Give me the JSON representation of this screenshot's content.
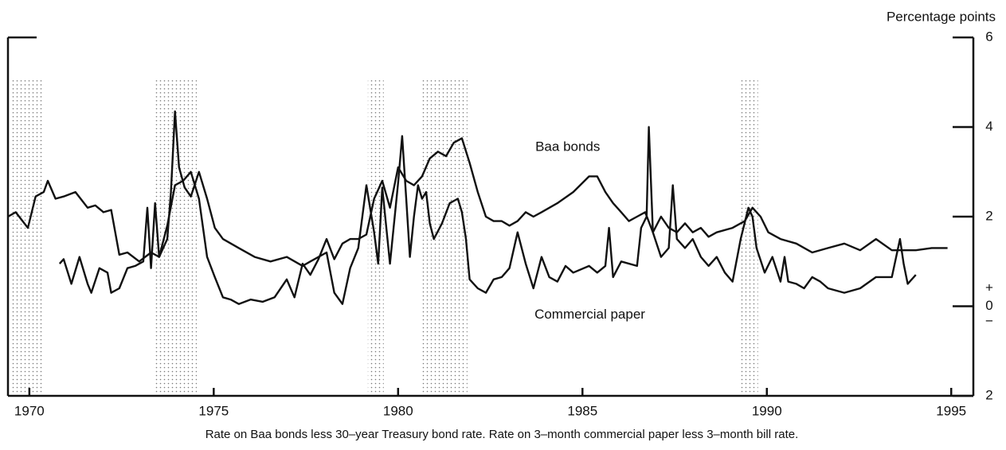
{
  "chart_data": {
    "type": "line",
    "y_axis_label": "Percentage points",
    "caption": "Rate on Baa bonds less 30–year Treasury bond rate. Rate on 3–month commercial paper less 3–month bill rate.",
    "annotations": [
      {
        "text": "Baa bonds",
        "x": 1984.6,
        "y": 3.55
      },
      {
        "text": "Commercial paper",
        "x": 1985.2,
        "y": -0.2
      }
    ],
    "sign_marks": [
      {
        "text": "+",
        "y": 0.4
      },
      {
        "text": "−",
        "y": -0.35
      }
    ],
    "shaded": [
      [
        1969.5,
        1970.4
      ],
      [
        1973.37,
        1974.54
      ],
      [
        1979.18,
        1979.61
      ],
      [
        1980.65,
        1981.88
      ],
      [
        1989.29,
        1989.76
      ]
    ],
    "xlim": [
      1969.42,
      1995.6
    ],
    "xticks": [
      1970,
      1975,
      1980,
      1985,
      1990,
      1995
    ],
    "ylim": [
      -2,
      6
    ],
    "yticks": [
      6,
      4,
      2,
      0,
      {
        "value": -2,
        "label": "2"
      }
    ],
    "series": [
      {
        "name": "Baa bonds",
        "color": "#111111",
        "x": [
          1969.42,
          1969.63,
          1969.96,
          1970.17,
          1970.39,
          1970.5,
          1970.71,
          1970.93,
          1971.25,
          1971.58,
          1971.79,
          1972.01,
          1972.22,
          1972.44,
          1972.66,
          1972.98,
          1973.3,
          1973.52,
          1973.74,
          1973.95,
          1974.17,
          1974.38,
          1974.6,
          1974.82,
          1975.03,
          1975.25,
          1975.46,
          1975.68,
          1976.0,
          1976.33,
          1976.65,
          1976.98,
          1977.19,
          1977.41,
          1977.62,
          1977.84,
          1978.06,
          1978.27,
          1978.49,
          1978.7,
          1978.92,
          1979.14,
          1979.35,
          1979.57,
          1979.78,
          1980.0,
          1980.22,
          1980.43,
          1980.65,
          1980.86,
          1981.08,
          1981.3,
          1981.51,
          1981.73,
          1981.94,
          1982.16,
          1982.38,
          1982.59,
          1982.81,
          1983.02,
          1983.24,
          1983.46,
          1983.67,
          1983.89,
          1984.32,
          1984.75,
          1985.18,
          1985.4,
          1985.62,
          1985.83,
          1986.05,
          1986.26,
          1986.48,
          1986.7,
          1986.91,
          1987.13,
          1987.34,
          1987.56,
          1987.78,
          1987.99,
          1988.21,
          1988.42,
          1988.64,
          1989.07,
          1989.4,
          1989.61,
          1989.83,
          1990.04,
          1990.37,
          1990.8,
          1991.23,
          1991.66,
          1992.1,
          1992.53,
          1992.96,
          1993.39,
          1994.04,
          1994.47,
          1994.9
        ],
        "values": [
          2.0,
          2.1,
          1.75,
          2.45,
          2.55,
          2.8,
          2.4,
          2.45,
          2.55,
          2.2,
          2.25,
          2.1,
          2.15,
          1.15,
          1.2,
          1.0,
          1.2,
          1.1,
          1.8,
          2.7,
          2.8,
          3.0,
          2.4,
          1.1,
          0.65,
          0.2,
          0.15,
          0.05,
          0.15,
          0.1,
          0.2,
          0.6,
          0.2,
          0.95,
          0.7,
          1.05,
          1.5,
          1.05,
          1.4,
          1.5,
          1.5,
          1.6,
          2.4,
          2.8,
          2.2,
          3.1,
          2.8,
          2.7,
          2.9,
          3.3,
          3.45,
          3.35,
          3.65,
          3.75,
          3.2,
          2.55,
          2.0,
          1.9,
          1.9,
          1.8,
          1.9,
          2.1,
          2.0,
          2.1,
          2.3,
          2.55,
          2.9,
          2.9,
          2.55,
          2.3,
          2.1,
          1.9,
          2.0,
          2.1,
          1.65,
          2.0,
          1.75,
          1.65,
          1.85,
          1.65,
          1.75,
          1.55,
          1.65,
          1.75,
          1.9,
          2.2,
          2.0,
          1.65,
          1.5,
          1.4,
          1.2,
          1.3,
          1.4,
          1.25,
          1.5,
          1.25,
          1.25,
          1.3,
          1.3
        ]
      },
      {
        "name": "Commercial paper",
        "color": "#111111",
        "x": [
          1970.82,
          1970.93,
          1971.14,
          1971.36,
          1971.58,
          1971.68,
          1971.9,
          1972.12,
          1972.22,
          1972.44,
          1972.66,
          1972.87,
          1973.09,
          1973.2,
          1973.3,
          1973.41,
          1973.52,
          1973.74,
          1973.84,
          1973.95,
          1974.06,
          1974.21,
          1974.38,
          1974.6,
          1974.82,
          1975.03,
          1975.25,
          1975.68,
          1976.11,
          1976.54,
          1976.98,
          1977.41,
          1977.62,
          1978.06,
          1978.27,
          1978.49,
          1978.7,
          1978.92,
          1979.14,
          1979.35,
          1979.46,
          1979.57,
          1979.78,
          1980.0,
          1980.11,
          1980.22,
          1980.32,
          1980.43,
          1980.54,
          1980.65,
          1980.76,
          1980.86,
          1980.97,
          1981.19,
          1981.4,
          1981.62,
          1981.73,
          1981.84,
          1981.94,
          1982.16,
          1982.38,
          1982.59,
          1982.81,
          1983.02,
          1983.24,
          1983.46,
          1983.67,
          1983.89,
          1984.1,
          1984.32,
          1984.54,
          1984.75,
          1985.18,
          1985.4,
          1985.62,
          1985.72,
          1985.83,
          1986.05,
          1986.48,
          1986.59,
          1986.74,
          1986.8,
          1986.91,
          1987.13,
          1987.34,
          1987.45,
          1987.56,
          1987.78,
          1987.99,
          1988.21,
          1988.42,
          1988.64,
          1988.86,
          1989.07,
          1989.29,
          1989.5,
          1989.61,
          1989.72,
          1989.94,
          1990.15,
          1990.37,
          1990.48,
          1990.58,
          1990.8,
          1991.01,
          1991.23,
          1991.45,
          1991.66,
          1992.1,
          1992.53,
          1992.96,
          1993.39,
          1993.61,
          1993.71,
          1993.82,
          1994.04
        ],
        "values": [
          0.95,
          1.05,
          0.5,
          1.1,
          0.5,
          0.3,
          0.85,
          0.75,
          0.3,
          0.4,
          0.85,
          0.9,
          1.0,
          2.2,
          0.85,
          2.3,
          1.1,
          1.5,
          2.55,
          4.35,
          3.1,
          2.65,
          2.45,
          3.0,
          2.4,
          1.75,
          1.5,
          1.3,
          1.1,
          1.0,
          1.1,
          0.9,
          1.0,
          1.2,
          0.3,
          0.05,
          0.85,
          1.3,
          2.7,
          1.65,
          0.95,
          2.65,
          0.95,
          2.75,
          3.8,
          2.4,
          1.1,
          2.0,
          2.7,
          2.4,
          2.55,
          1.85,
          1.5,
          1.85,
          2.3,
          2.4,
          2.1,
          1.5,
          0.6,
          0.4,
          0.3,
          0.6,
          0.65,
          0.85,
          1.65,
          0.95,
          0.4,
          1.1,
          0.65,
          0.55,
          0.9,
          0.75,
          0.9,
          0.75,
          0.9,
          1.75,
          0.65,
          1.0,
          0.9,
          1.75,
          2.0,
          4.0,
          1.65,
          1.1,
          1.3,
          2.7,
          1.5,
          1.3,
          1.5,
          1.1,
          0.9,
          1.1,
          0.75,
          0.55,
          1.5,
          2.2,
          2.0,
          1.3,
          0.75,
          1.1,
          0.55,
          1.1,
          0.55,
          0.5,
          0.4,
          0.65,
          0.55,
          0.4,
          0.3,
          0.4,
          0.65,
          0.65,
          1.5,
          0.95,
          0.5,
          0.7
        ]
      }
    ]
  }
}
